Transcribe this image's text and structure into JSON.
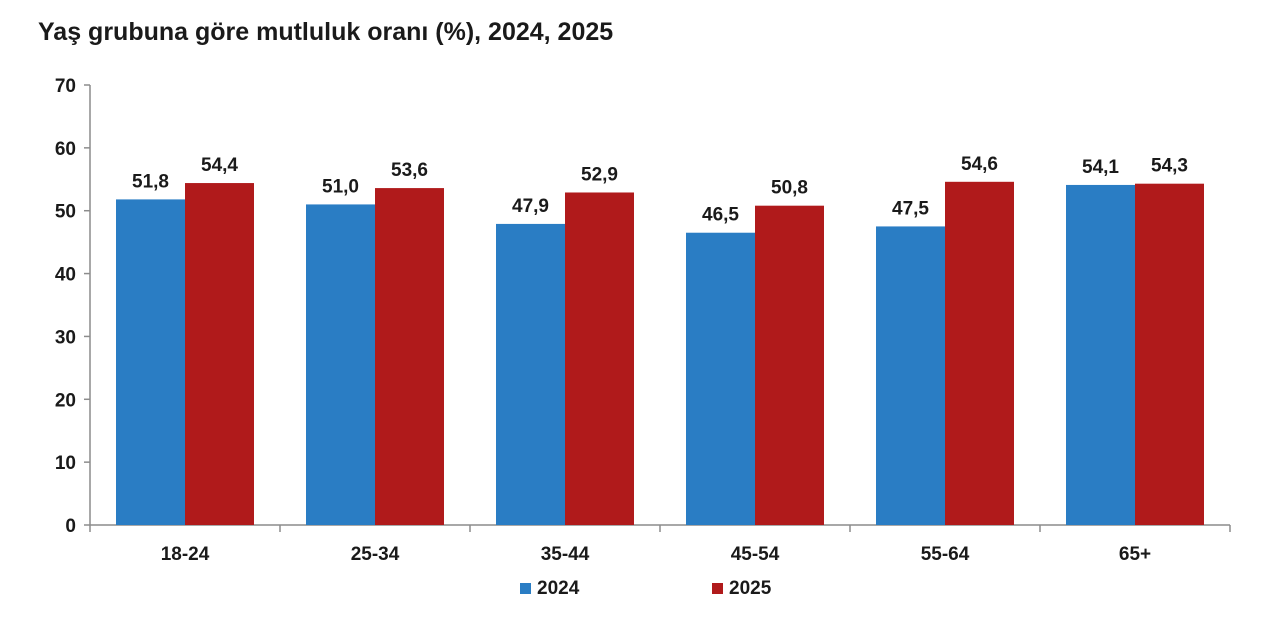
{
  "chart_data": {
    "type": "bar",
    "title": "Yaş grubuna göre mutluluk oranı (%), 2024, 2025",
    "categories": [
      "18-24",
      "25-34",
      "35-44",
      "45-54",
      "55-64",
      "65+"
    ],
    "series": [
      {
        "name": "2024",
        "color": "#2a7dc4",
        "values": [
          51.8,
          51.0,
          47.9,
          46.5,
          47.5,
          54.1
        ],
        "labels": [
          "51,8",
          "51,0",
          "47,9",
          "46,5",
          "47,5",
          "54,1"
        ]
      },
      {
        "name": "2025",
        "color": "#b01a1b",
        "values": [
          54.4,
          53.6,
          52.9,
          50.8,
          54.6,
          54.3
        ],
        "labels": [
          "54,4",
          "53,6",
          "52,9",
          "50,8",
          "54,6",
          "54,3"
        ]
      }
    ],
    "ylim": [
      0,
      70
    ],
    "yticks": [
      "0",
      "10",
      "20",
      "30",
      "40",
      "50",
      "60",
      "70"
    ],
    "grid": false,
    "legend_position": "bottom-center"
  }
}
